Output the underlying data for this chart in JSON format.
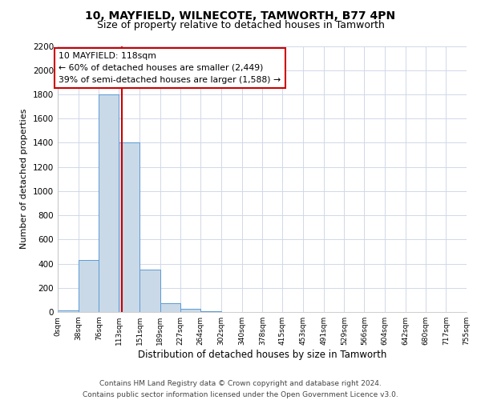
{
  "title_line1": "10, MAYFIELD, WILNECOTE, TAMWORTH, B77 4PN",
  "title_line2": "Size of property relative to detached houses in Tamworth",
  "xlabel": "Distribution of detached houses by size in Tamworth",
  "ylabel": "Number of detached properties",
  "bin_edges": [
    0,
    38,
    76,
    113,
    151,
    189,
    227,
    264,
    302,
    340,
    378,
    415,
    453,
    491,
    529,
    566,
    604,
    642,
    680,
    717,
    755
  ],
  "bin_heights": [
    15,
    430,
    1800,
    1400,
    350,
    75,
    25,
    5,
    0,
    0,
    0,
    0,
    0,
    0,
    0,
    0,
    0,
    0,
    0,
    0
  ],
  "bar_color": "#c9d9e8",
  "bar_edge_color": "#5b9bd5",
  "property_value": 118,
  "annotation_title": "10 MAYFIELD: 118sqm",
  "annotation_line2": "← 60% of detached houses are smaller (2,449)",
  "annotation_line3": "39% of semi-detached houses are larger (1,588) →",
  "annotation_box_color": "#ffffff",
  "annotation_box_edge_color": "#cc0000",
  "marker_line_color": "#cc0000",
  "ylim": [
    0,
    2200
  ],
  "yticks": [
    0,
    200,
    400,
    600,
    800,
    1000,
    1200,
    1400,
    1600,
    1800,
    2000,
    2200
  ],
  "xtick_labels": [
    "0sqm",
    "38sqm",
    "76sqm",
    "113sqm",
    "151sqm",
    "189sqm",
    "227sqm",
    "264sqm",
    "302sqm",
    "340sqm",
    "378sqm",
    "415sqm",
    "453sqm",
    "491sqm",
    "529sqm",
    "566sqm",
    "604sqm",
    "642sqm",
    "680sqm",
    "717sqm",
    "755sqm"
  ],
  "footer_line1": "Contains HM Land Registry data © Crown copyright and database right 2024.",
  "footer_line2": "Contains public sector information licensed under the Open Government Licence v3.0.",
  "bg_color": "#ffffff",
  "grid_color": "#d0d8e8",
  "title1_fontsize": 10,
  "title2_fontsize": 9,
  "xlabel_fontsize": 8.5,
  "ylabel_fontsize": 8,
  "footer_fontsize": 6.5,
  "annot_fontsize": 7.8
}
